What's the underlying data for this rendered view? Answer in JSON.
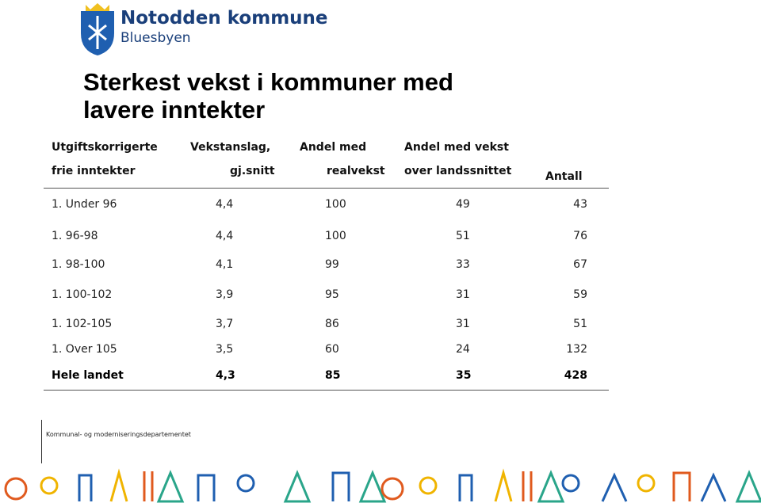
{
  "header": {
    "org": "Notodden kommune",
    "tagline": "Bluesbyen"
  },
  "title": [
    "Sterkest vekst i kommuner med",
    "lavere inntekter"
  ],
  "table": {
    "columns": [
      [
        "Utgiftskorrigerte",
        "frie inntekter"
      ],
      [
        "Vekstanslag,",
        "gj.snitt"
      ],
      [
        "Andel med",
        "realvekst"
      ],
      [
        "Andel med vekst",
        "over landssnittet"
      ],
      [
        "Antall"
      ]
    ],
    "rows": [
      [
        "1. Under 96",
        "4,4",
        "100",
        "49",
        "43"
      ],
      [
        "1. 96-98",
        "4,4",
        "100",
        "51",
        "76"
      ],
      [
        "1. 98-100",
        "4,1",
        "99",
        "33",
        "67"
      ],
      [
        "1. 100-102",
        "3,9",
        "95",
        "31",
        "59"
      ],
      [
        "1. 102-105",
        "3,7",
        "86",
        "31",
        "51"
      ],
      [
        "1. Over 105",
        "3,5",
        "60",
        "24",
        "132"
      ],
      [
        "Hele landet",
        "4,3",
        "85",
        "35",
        "428"
      ]
    ]
  },
  "footer": "Kommunal- og moderniseringsdepartementet"
}
